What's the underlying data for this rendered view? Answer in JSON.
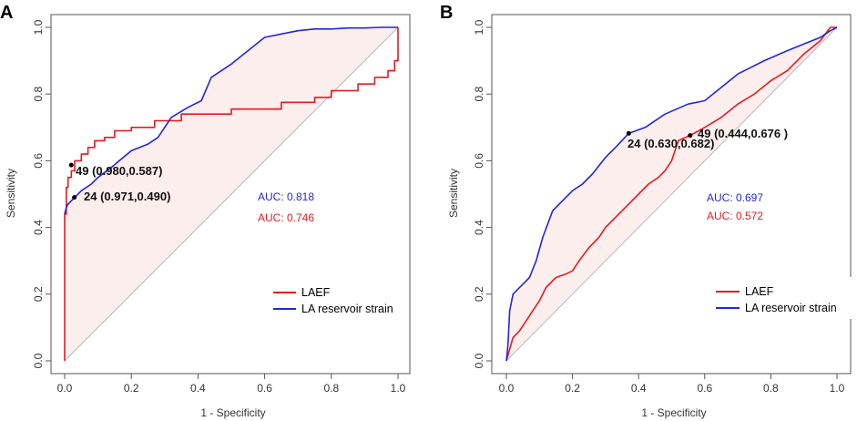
{
  "colors": {
    "laef": "#e8191e",
    "strain": "#2228d8",
    "fill": "#fdeeee",
    "diag": "#b8b8b8",
    "frame": "#555555"
  },
  "chart_data": [
    {
      "panel": "A",
      "type": "line",
      "subtype": "roc",
      "xlabel": "1 - Specificity",
      "ylabel": "Sensitivity",
      "xlim": [
        0,
        1
      ],
      "ylim": [
        0,
        1
      ],
      "xticks": [
        "0.0",
        "0.2",
        "0.4",
        "0.6",
        "0.8",
        "1.0"
      ],
      "yticks": [
        "0.0",
        "0.2",
        "0.4",
        "0.6",
        "0.8",
        "1.0"
      ],
      "legend": [
        "LAEF",
        "LA reservoir strain"
      ],
      "legend_position": "bottom-right",
      "auc_labels": [
        {
          "text": "AUC: 0.818",
          "series": "strain"
        },
        {
          "text": "AUC: 0.746",
          "series": "laef"
        }
      ],
      "annotations": [
        {
          "text": "49 (0.980,0.587)",
          "x": 0.02,
          "y": 0.587,
          "series": "laef"
        },
        {
          "text": "24 (0.971,0.490)",
          "x": 0.029,
          "y": 0.49,
          "series": "strain"
        }
      ],
      "series": [
        {
          "name": "LAEF",
          "key": "laef",
          "x": [
            0,
            0,
            0.005,
            0.005,
            0.01,
            0.01,
            0.02,
            0.02,
            0.03,
            0.03,
            0.05,
            0.05,
            0.07,
            0.07,
            0.09,
            0.09,
            0.12,
            0.12,
            0.15,
            0.15,
            0.2,
            0.2,
            0.27,
            0.27,
            0.35,
            0.35,
            0.5,
            0.5,
            0.65,
            0.65,
            0.75,
            0.75,
            0.8,
            0.8,
            0.88,
            0.88,
            0.93,
            0.93,
            0.97,
            0.97,
            0.99,
            0.99,
            1.0,
            1.0
          ],
          "y": [
            0,
            0.44,
            0.44,
            0.52,
            0.52,
            0.55,
            0.55,
            0.57,
            0.57,
            0.6,
            0.6,
            0.62,
            0.62,
            0.64,
            0.64,
            0.66,
            0.66,
            0.67,
            0.67,
            0.69,
            0.69,
            0.7,
            0.7,
            0.72,
            0.72,
            0.74,
            0.74,
            0.755,
            0.755,
            0.775,
            0.775,
            0.79,
            0.79,
            0.81,
            0.81,
            0.83,
            0.83,
            0.85,
            0.85,
            0.87,
            0.87,
            0.9,
            0.9,
            1.0
          ]
        },
        {
          "name": "LA reservoir strain",
          "key": "strain",
          "x": [
            0,
            0.005,
            0.01,
            0.03,
            0.05,
            0.08,
            0.1,
            0.14,
            0.2,
            0.25,
            0.28,
            0.32,
            0.37,
            0.41,
            0.44,
            0.5,
            0.55,
            0.6,
            0.65,
            0.7,
            0.75,
            0.8,
            0.85,
            0.9,
            0.95,
            0.99,
            1.0
          ],
          "y": [
            0.44,
            0.46,
            0.47,
            0.49,
            0.51,
            0.53,
            0.55,
            0.58,
            0.63,
            0.65,
            0.67,
            0.73,
            0.76,
            0.78,
            0.85,
            0.89,
            0.93,
            0.97,
            0.98,
            0.99,
            0.995,
            0.995,
            0.998,
            0.998,
            1.0,
            1.0,
            1.0
          ]
        }
      ]
    },
    {
      "panel": "B",
      "type": "line",
      "subtype": "roc",
      "xlabel": "1 - Specificity",
      "ylabel": "Sensitivity",
      "xlim": [
        0,
        1
      ],
      "ylim": [
        0,
        1
      ],
      "xticks": [
        "0.0",
        "0.2",
        "0.4",
        "0.6",
        "0.8",
        "1.0"
      ],
      "yticks": [
        "0.0",
        "0.2",
        "0.4",
        "0.6",
        "0.8",
        "1.0"
      ],
      "legend": [
        "LAEF",
        "LA reservoir strain"
      ],
      "legend_position": "bottom-right",
      "auc_labels": [
        {
          "text": "AUC: 0.697",
          "series": "strain"
        },
        {
          "text": "AUC: 0.572",
          "series": "laef"
        }
      ],
      "annotations": [
        {
          "text": "24 (0.630,0.682)",
          "x": 0.37,
          "y": 0.682,
          "series": "strain"
        },
        {
          "text": "49 (0.444,0.676 )",
          "x": 0.556,
          "y": 0.676,
          "series": "laef"
        }
      ],
      "series": [
        {
          "name": "LAEF",
          "key": "laef",
          "x": [
            0,
            0.02,
            0.04,
            0.06,
            0.08,
            0.1,
            0.12,
            0.15,
            0.18,
            0.2,
            0.22,
            0.25,
            0.28,
            0.3,
            0.33,
            0.36,
            0.4,
            0.43,
            0.46,
            0.48,
            0.5,
            0.52,
            0.556,
            0.6,
            0.65,
            0.7,
            0.75,
            0.8,
            0.85,
            0.9,
            0.95,
            0.98,
            1.0
          ],
          "y": [
            0,
            0.07,
            0.09,
            0.12,
            0.15,
            0.18,
            0.22,
            0.25,
            0.26,
            0.27,
            0.3,
            0.34,
            0.37,
            0.4,
            0.43,
            0.46,
            0.5,
            0.53,
            0.55,
            0.57,
            0.6,
            0.66,
            0.676,
            0.7,
            0.73,
            0.77,
            0.8,
            0.84,
            0.87,
            0.92,
            0.96,
            1.0,
            1.0
          ]
        },
        {
          "name": "LA reservoir strain",
          "key": "strain",
          "x": [
            0,
            0.005,
            0.01,
            0.02,
            0.04,
            0.07,
            0.09,
            0.11,
            0.14,
            0.17,
            0.2,
            0.23,
            0.26,
            0.3,
            0.33,
            0.37,
            0.42,
            0.48,
            0.55,
            0.6,
            0.65,
            0.7,
            0.78,
            0.85,
            0.9,
            0.95,
            0.98,
            1.0
          ],
          "y": [
            0,
            0.05,
            0.15,
            0.2,
            0.22,
            0.25,
            0.3,
            0.37,
            0.45,
            0.48,
            0.51,
            0.53,
            0.56,
            0.61,
            0.64,
            0.682,
            0.7,
            0.74,
            0.77,
            0.78,
            0.82,
            0.86,
            0.9,
            0.93,
            0.95,
            0.97,
            0.99,
            1.0
          ]
        }
      ]
    }
  ]
}
